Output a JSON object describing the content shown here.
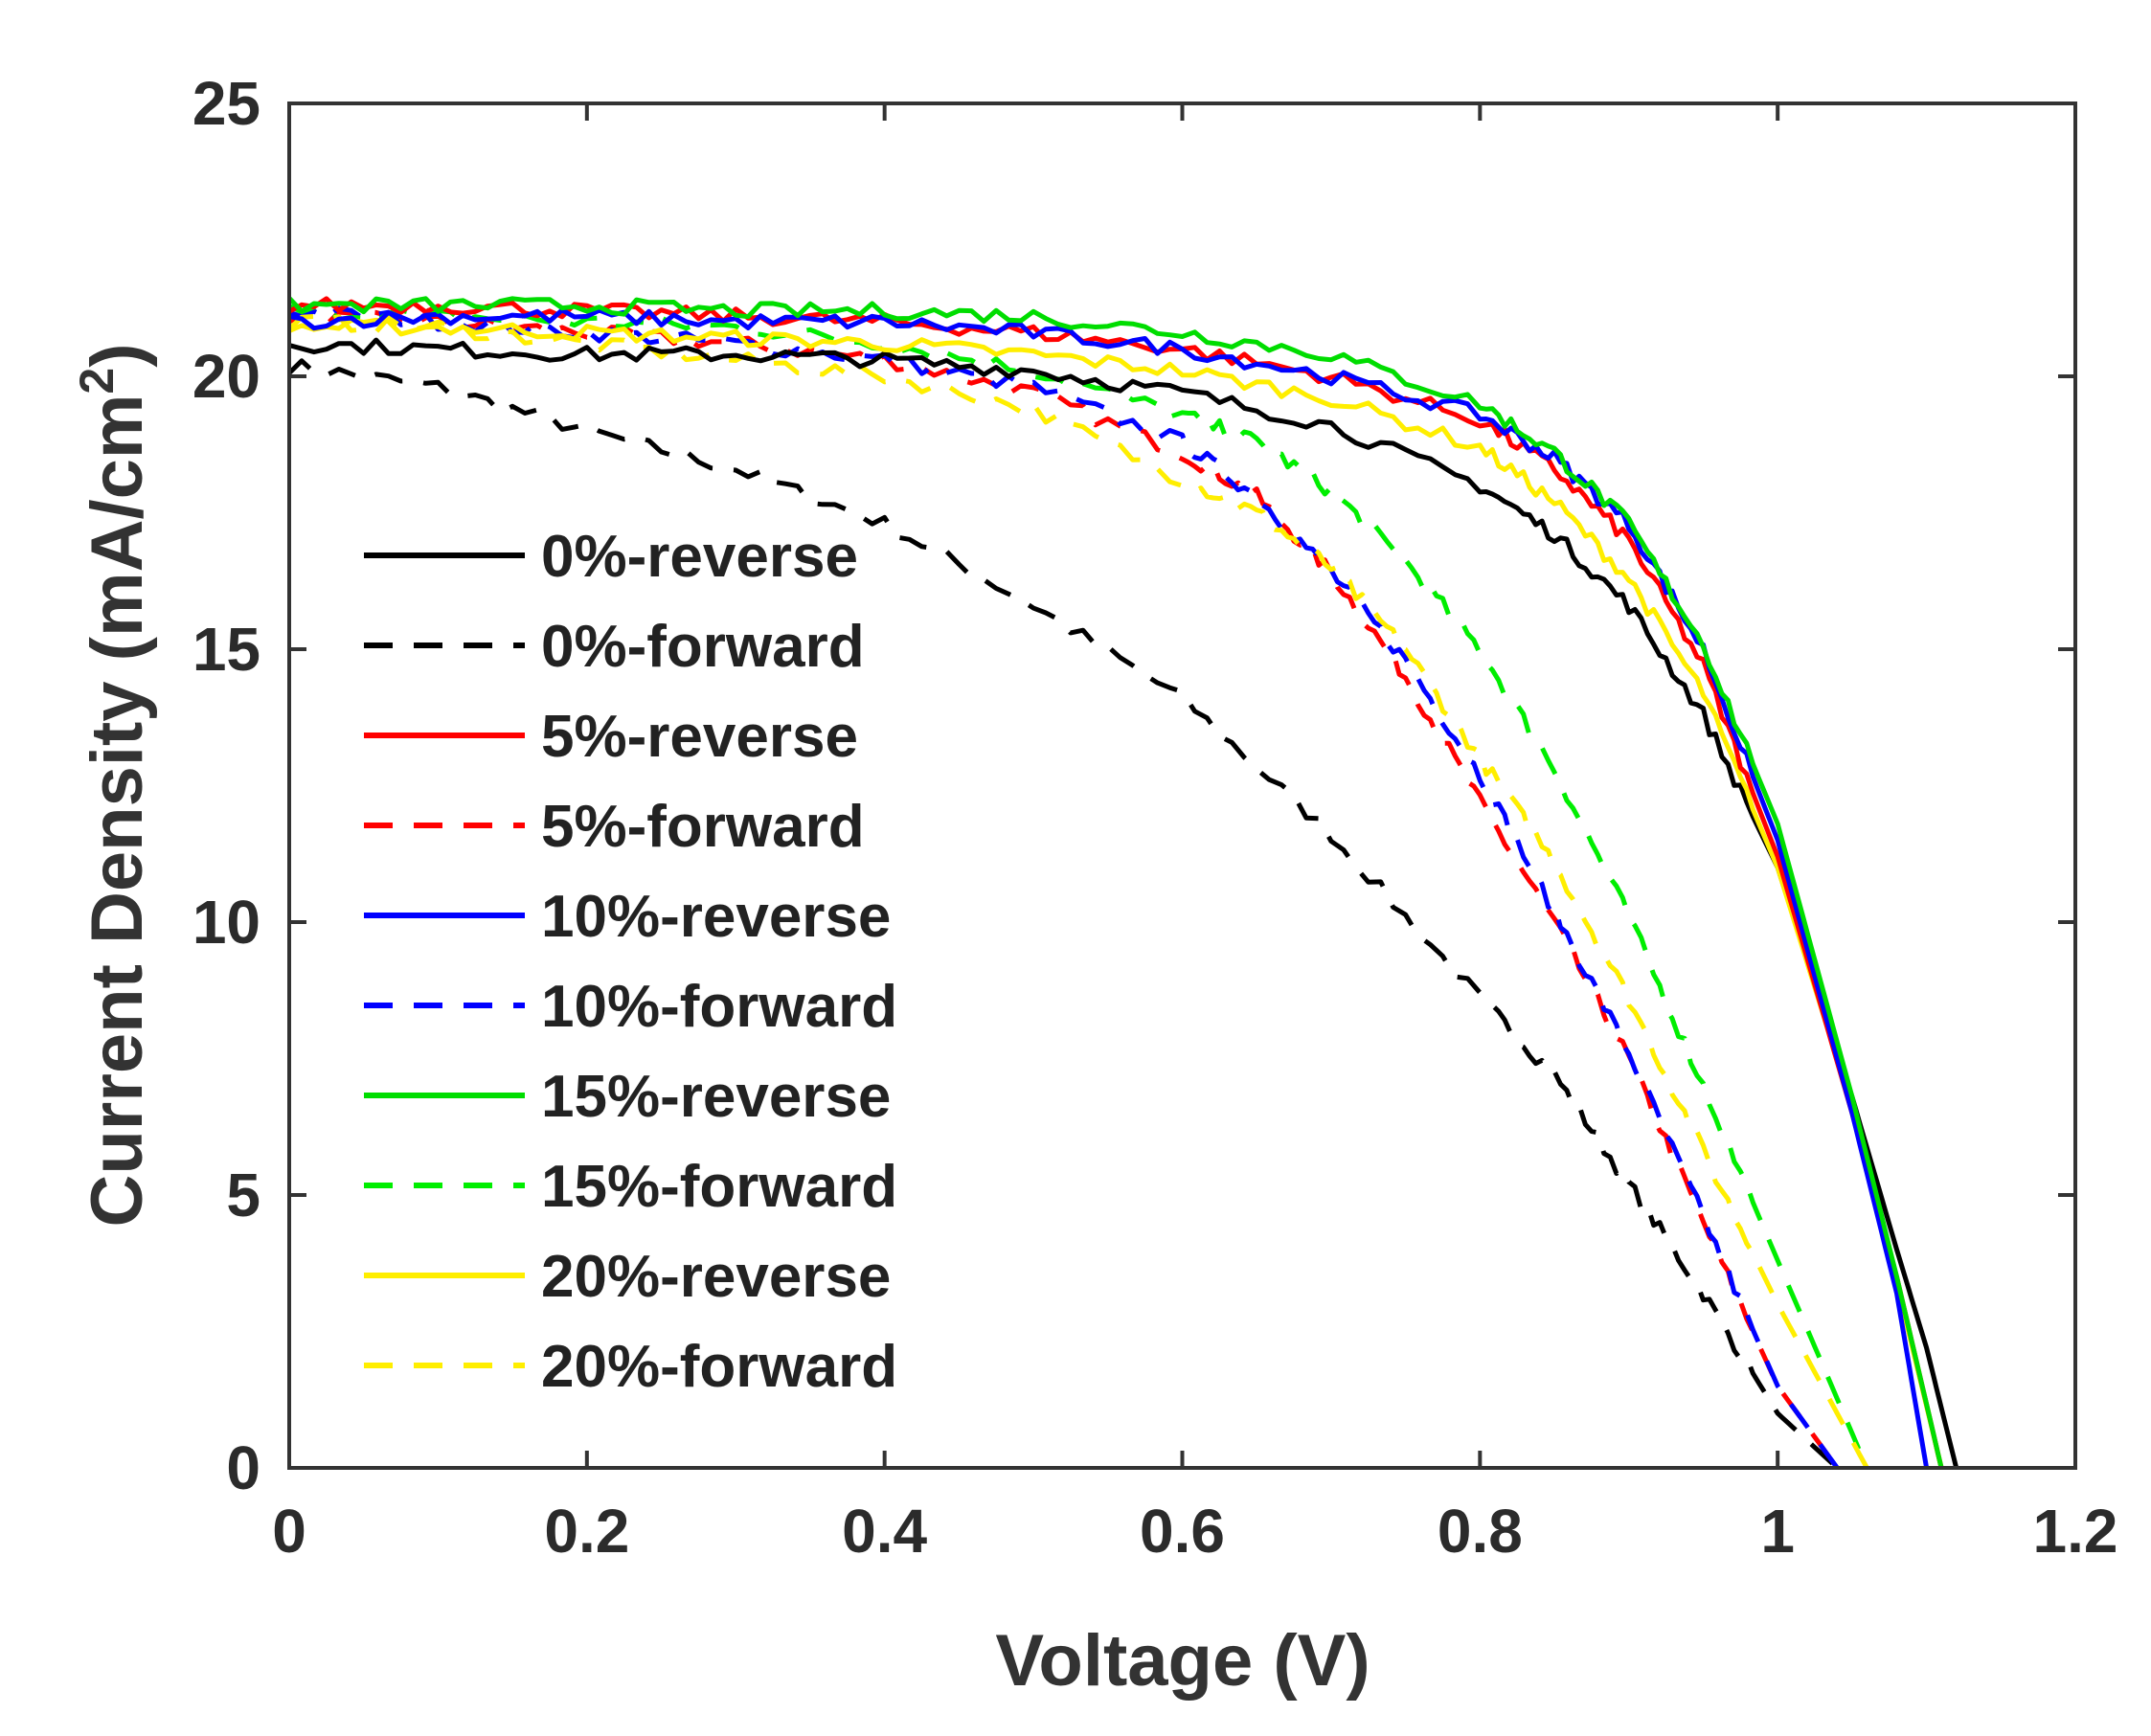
{
  "chart_data": {
    "type": "line",
    "xlabel": "Voltage (V)",
    "ylabel_main": "Current Density (mA/cm",
    "ylabel_sup": "2",
    "ylabel_close": ")",
    "xlim": [
      0,
      1.2
    ],
    "ylim": [
      0,
      25
    ],
    "xticks": [
      0,
      0.2,
      0.4,
      0.6,
      0.8,
      1,
      1.2
    ],
    "xtick_labels": [
      "0",
      "0.2",
      "0.4",
      "0.6",
      "0.8",
      "1",
      "1.2"
    ],
    "yticks": [
      0,
      5,
      10,
      15,
      20,
      25
    ],
    "ytick_labels": [
      "0",
      "5",
      "10",
      "15",
      "20",
      "25"
    ],
    "grid": false,
    "legend_position": "center-left",
    "series": [
      {
        "name": "0%-reverse",
        "color": "#000000",
        "dashed": false,
        "x": [
          0,
          0.1,
          0.2,
          0.3,
          0.4,
          0.5,
          0.6,
          0.7,
          0.8,
          0.85,
          0.9,
          0.95,
          1.0,
          1.05,
          1.08,
          1.1,
          1.12
        ],
        "y": [
          20.6,
          20.5,
          20.4,
          20.4,
          20.3,
          20.1,
          19.7,
          19.1,
          18.0,
          17.1,
          15.8,
          13.8,
          11.0,
          6.8,
          4.0,
          2.2,
          0
        ]
      },
      {
        "name": "0%-forward",
        "color": "#000000",
        "dashed": true,
        "x": [
          0,
          0.1,
          0.2,
          0.3,
          0.4,
          0.5,
          0.6,
          0.7,
          0.8,
          0.85,
          0.9,
          0.95,
          1.0,
          1.04
        ],
        "y": [
          20.2,
          19.8,
          19.0,
          18.3,
          17.3,
          15.8,
          14.1,
          11.6,
          8.6,
          7.2,
          5.2,
          3.2,
          1.0,
          0
        ]
      },
      {
        "name": "5%-reverse",
        "color": "#ff0000",
        "dashed": false,
        "x": [
          0,
          0.1,
          0.2,
          0.3,
          0.4,
          0.5,
          0.6,
          0.7,
          0.8,
          0.85,
          0.9,
          0.95,
          1.0,
          1.05,
          1.08,
          1.11
        ],
        "y": [
          21.3,
          21.3,
          21.2,
          21.1,
          21.0,
          20.8,
          20.5,
          20.0,
          19.2,
          18.3,
          17.0,
          14.7,
          11.2,
          6.5,
          3.5,
          0
        ]
      },
      {
        "name": "5%-forward",
        "color": "#ff0000",
        "dashed": true,
        "x": [
          0,
          0.1,
          0.2,
          0.3,
          0.4,
          0.5,
          0.6,
          0.65,
          0.7,
          0.75,
          0.8,
          0.85,
          0.9,
          0.95,
          1.0,
          1.04
        ],
        "y": [
          21.1,
          21.0,
          20.8,
          20.6,
          20.3,
          19.7,
          18.6,
          17.8,
          16.4,
          14.5,
          12.2,
          10.0,
          7.5,
          4.5,
          1.5,
          0
        ]
      },
      {
        "name": "10%-reverse",
        "color": "#0000ff",
        "dashed": false,
        "x": [
          0,
          0.1,
          0.2,
          0.3,
          0.4,
          0.5,
          0.6,
          0.7,
          0.8,
          0.85,
          0.9,
          0.95,
          1.0,
          1.05,
          1.08,
          1.1
        ],
        "y": [
          21.0,
          21.1,
          21.1,
          21.0,
          21.0,
          20.8,
          20.5,
          20.0,
          19.3,
          18.5,
          17.3,
          15.0,
          11.5,
          6.5,
          3.2,
          0
        ]
      },
      {
        "name": "10%-forward",
        "color": "#0000ff",
        "dashed": true,
        "x": [
          0,
          0.1,
          0.2,
          0.3,
          0.4,
          0.5,
          0.6,
          0.65,
          0.7,
          0.75,
          0.8,
          0.85,
          0.9,
          0.95,
          1.0,
          1.04
        ],
        "y": [
          21.2,
          21.0,
          20.8,
          20.6,
          20.3,
          19.8,
          18.8,
          17.8,
          16.4,
          14.8,
          12.7,
          10.2,
          7.6,
          4.6,
          1.5,
          0
        ]
      },
      {
        "name": "15%-reverse",
        "color": "#00dd00",
        "dashed": false,
        "x": [
          0,
          0.1,
          0.2,
          0.3,
          0.4,
          0.5,
          0.6,
          0.7,
          0.8,
          0.85,
          0.9,
          0.95,
          1.0,
          1.05,
          1.08,
          1.11
        ],
        "y": [
          21.3,
          21.3,
          21.3,
          21.2,
          21.2,
          21.1,
          20.8,
          20.4,
          19.5,
          18.6,
          17.3,
          15.1,
          11.8,
          6.8,
          3.5,
          0
        ]
      },
      {
        "name": "15%-forward",
        "color": "#00ee00",
        "dashed": true,
        "x": [
          0,
          0.1,
          0.2,
          0.3,
          0.4,
          0.5,
          0.6,
          0.65,
          0.7,
          0.75,
          0.8,
          0.85,
          0.9,
          0.95,
          1.0,
          1.06
        ],
        "y": [
          21.2,
          21.1,
          21.0,
          20.9,
          20.6,
          20.1,
          19.3,
          18.8,
          17.9,
          16.6,
          15.0,
          12.8,
          10.1,
          7.0,
          3.8,
          0
        ]
      },
      {
        "name": "20%-reverse",
        "color": "#ffee00",
        "dashed": false,
        "x": [
          0,
          0.1,
          0.2,
          0.3,
          0.4,
          0.5,
          0.6,
          0.7,
          0.8,
          0.85,
          0.9,
          0.95,
          1.0,
          1.05,
          1.08,
          1.11
        ],
        "y": [
          20.9,
          20.9,
          20.8,
          20.7,
          20.6,
          20.4,
          20.1,
          19.6,
          18.7,
          17.7,
          16.3,
          14.2,
          11.0,
          6.6,
          3.4,
          0
        ]
      },
      {
        "name": "20%-forward",
        "color": "#ffee00",
        "dashed": true,
        "x": [
          0,
          0.1,
          0.2,
          0.3,
          0.4,
          0.5,
          0.6,
          0.65,
          0.7,
          0.75,
          0.8,
          0.85,
          0.9,
          0.95,
          1.0,
          1.06
        ],
        "y": [
          21.0,
          20.9,
          20.6,
          20.3,
          20.0,
          19.4,
          18.1,
          17.5,
          16.5,
          15.0,
          13.0,
          11.1,
          8.6,
          5.8,
          3.0,
          0
        ]
      }
    ]
  }
}
